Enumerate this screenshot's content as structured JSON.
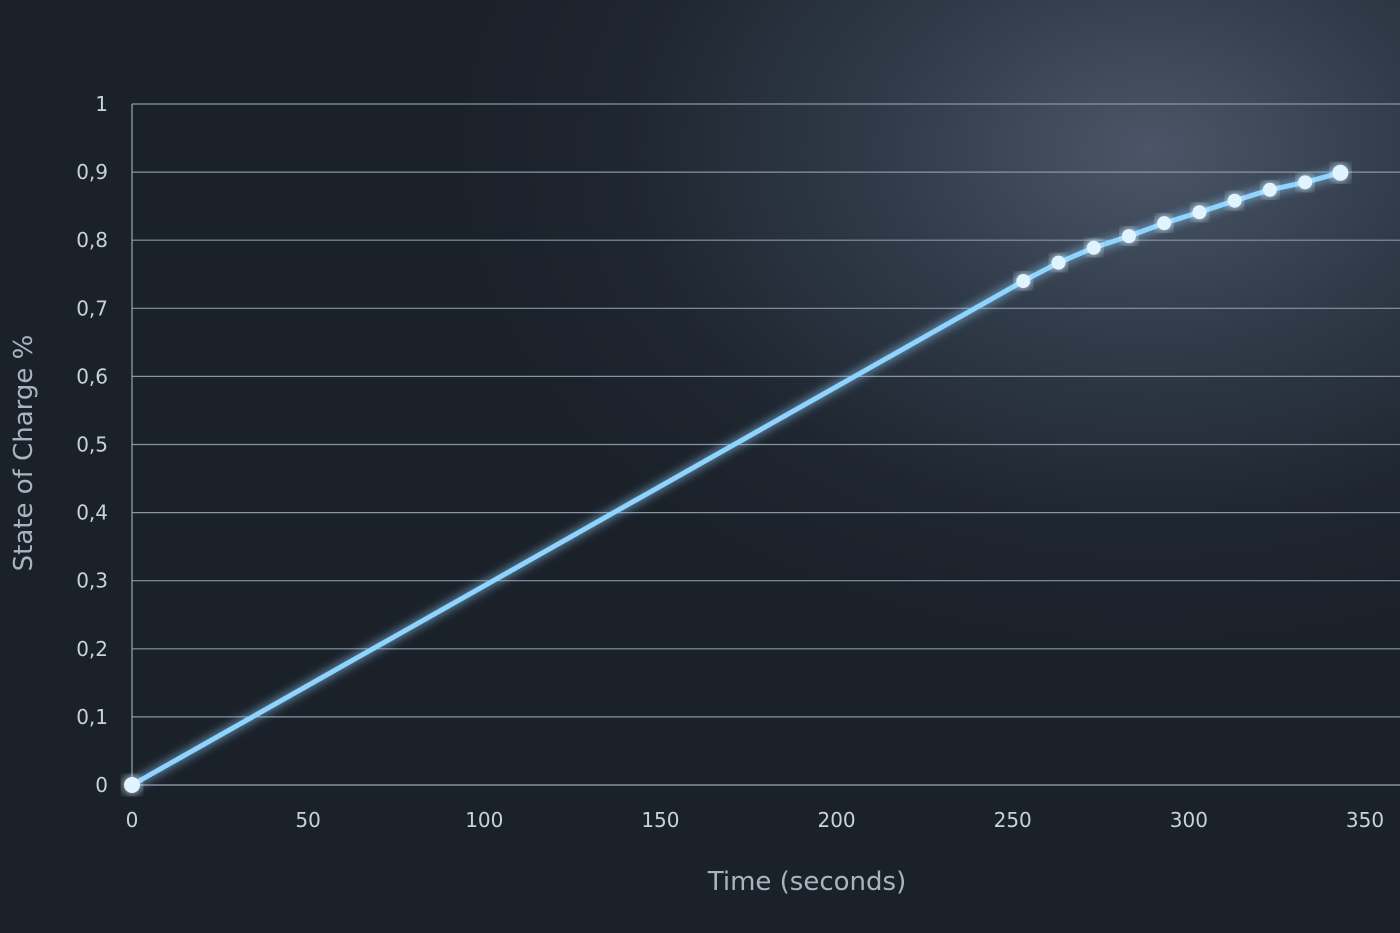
{
  "chart_data": {
    "type": "line",
    "title": "",
    "xlabel": "Time (seconds)",
    "ylabel": "State of Charge %",
    "xlim": [
      0,
      350
    ],
    "ylim": [
      0,
      1
    ],
    "x_ticks": [
      "0",
      "50",
      "100",
      "150",
      "200",
      "250",
      "300",
      "350"
    ],
    "y_ticks": [
      "0",
      "0,1",
      "0,2",
      "0,3",
      "0,4",
      "0,5",
      "0,6",
      "0,7",
      "0,8",
      "0,9",
      "1"
    ],
    "grid": "horizontal",
    "series": [
      {
        "x": [
          0,
          253,
          263,
          273,
          283,
          293,
          303,
          313,
          323,
          333,
          343
        ],
        "y": [
          0,
          0.74,
          0.767,
          0.789,
          0.806,
          0.825,
          0.841,
          0.858,
          0.874,
          0.885,
          0.899
        ],
        "color": "#8fd3ff"
      }
    ]
  }
}
